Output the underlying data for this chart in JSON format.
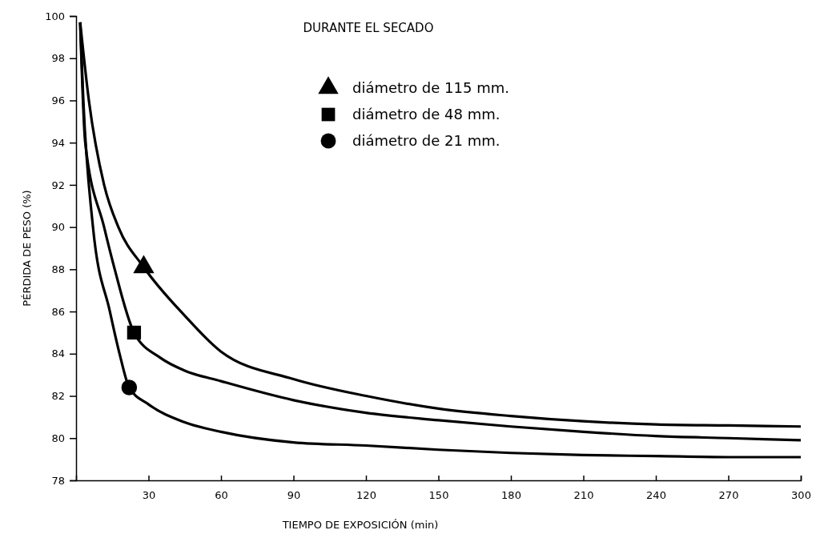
{
  "chart_data": {
    "type": "line",
    "title": "DURANTE EL SECADO",
    "xlabel": "TIEMPO DE EXPOSICIÓN  (min)",
    "ylabel": "PÉRDIDA DE PESO  (%)",
    "xlim": [
      0,
      300
    ],
    "xticks": [
      30,
      60,
      90,
      120,
      150,
      180,
      210,
      240,
      270,
      300
    ],
    "ylim": [
      78,
      100
    ],
    "yticks": [
      78,
      80,
      82,
      84,
      86,
      88,
      90,
      92,
      94,
      96,
      98,
      100
    ],
    "grid": false,
    "legend": "top",
    "series": [
      {
        "color": "#000000",
        "x": [
          1.7,
          5.3,
          11.6,
          17.5,
          28,
          45,
          60,
          90,
          120,
          150,
          180,
          210,
          240,
          270,
          300
        ],
        "values": [
          99.7,
          96,
          92,
          90,
          88.1,
          85.8,
          84.1,
          82.8,
          82,
          81.4,
          81.05,
          80.8,
          80.65,
          80.6,
          80.55
        ]
      },
      {
        "color": "#000000",
        "x": [
          1.7,
          3.8,
          11.6,
          16,
          24,
          35,
          45,
          60,
          90,
          120,
          150,
          180,
          210,
          240,
          270,
          300
        ],
        "values": [
          99.7,
          94,
          90,
          88,
          85,
          83.8,
          83.2,
          82.7,
          81.8,
          81.2,
          80.85,
          80.55,
          80.3,
          80.1,
          80,
          79.9
        ]
      },
      {
        "color": "#000000",
        "x": [
          1.7,
          3,
          7,
          14,
          18,
          22,
          30,
          45,
          60,
          90,
          120,
          150,
          180,
          210,
          240,
          270,
          300
        ],
        "values": [
          99.7,
          96,
          90,
          86,
          84,
          82.4,
          81.6,
          80.75,
          80.3,
          79.8,
          79.65,
          79.45,
          79.3,
          79.2,
          79.15,
          79.1,
          79.1
        ]
      },
      {
        "type": "scatter",
        "name": "diámetro de 115 mm.",
        "marker": "triangle",
        "color": "#000000",
        "x": [
          28
        ],
        "values": [
          88.1
        ]
      },
      {
        "type": "scatter",
        "name": "diámetro de 48 mm.",
        "marker": "square",
        "color": "#000000",
        "x": [
          24
        ],
        "values": [
          85
        ]
      },
      {
        "type": "scatter",
        "name": "diámetro de 21 mm.",
        "marker": "circle",
        "color": "#000000",
        "x": [
          22
        ],
        "values": [
          82.4
        ]
      }
    ]
  }
}
